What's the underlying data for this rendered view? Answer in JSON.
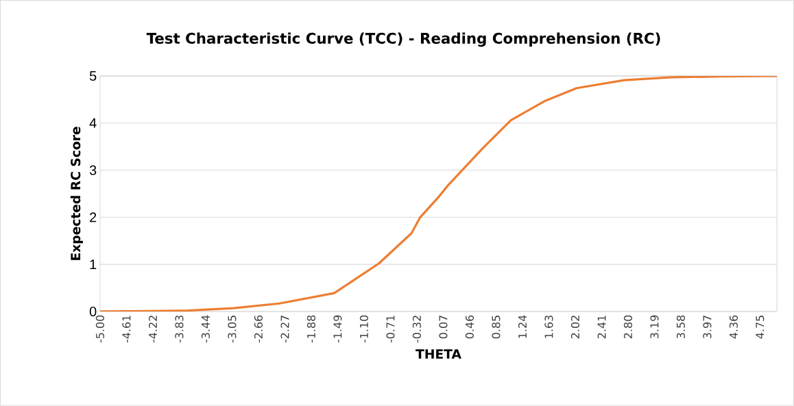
{
  "chart_data": {
    "type": "line",
    "title": "Test Characteristic Curve (TCC) - Reading Comprehension (RC)",
    "xlabel": "THETA",
    "ylabel": "Expected RC Score",
    "series": [
      {
        "color": "#ed7d31",
        "x": [
          -5.0,
          -4.3,
          -3.71,
          -3.03,
          -2.35,
          -1.54,
          -0.88,
          -0.4,
          -0.27,
          0.007,
          0.13,
          0.65,
          1.07,
          1.56,
          2.04,
          2.74,
          3.44,
          4.2,
          5.0
        ],
        "values": [
          0,
          0.01,
          0.02,
          0.07,
          0.17,
          0.39,
          1.02,
          1.66,
          2.0,
          2.44,
          2.66,
          3.46,
          4.06,
          4.46,
          4.74,
          4.91,
          4.97,
          4.99,
          5.0
        ]
      }
    ],
    "xlim": [
      -5,
      5
    ],
    "ylim": [
      0,
      5
    ],
    "yticks": [
      0,
      1,
      2,
      3,
      4,
      5
    ],
    "xticks": [
      {
        "value": -5.0,
        "label": "-5.00"
      },
      {
        "value": -4.61,
        "label": "-4.61"
      },
      {
        "value": -4.22,
        "label": "-4.22"
      },
      {
        "value": -3.83,
        "label": "-3.83"
      },
      {
        "value": -3.44,
        "label": "-3.44"
      },
      {
        "value": -3.05,
        "label": "-3.05"
      },
      {
        "value": -2.66,
        "label": "-2.66"
      },
      {
        "value": -2.27,
        "label": "-2.27"
      },
      {
        "value": -1.88,
        "label": "-1.88"
      },
      {
        "value": -1.49,
        "label": "-1.49"
      },
      {
        "value": -1.1,
        "label": "-1.10"
      },
      {
        "value": -0.71,
        "label": "-0.71"
      },
      {
        "value": -0.32,
        "label": "-0.32"
      },
      {
        "value": 0.07,
        "label": "0.07"
      },
      {
        "value": 0.46,
        "label": "0.46"
      },
      {
        "value": 0.85,
        "label": "0.85"
      },
      {
        "value": 1.24,
        "label": "1.24"
      },
      {
        "value": 1.63,
        "label": "1.63"
      },
      {
        "value": 2.02,
        "label": "2.02"
      },
      {
        "value": 2.41,
        "label": "2.41"
      },
      {
        "value": 2.8,
        "label": "2.80"
      },
      {
        "value": 3.19,
        "label": "3.19"
      },
      {
        "value": 3.58,
        "label": "3.58"
      },
      {
        "value": 3.97,
        "label": "3.97"
      },
      {
        "value": 4.36,
        "label": "4.36"
      },
      {
        "value": 4.75,
        "label": "4.75"
      }
    ],
    "grid": "y",
    "marker": "none",
    "line_style": "solid"
  }
}
